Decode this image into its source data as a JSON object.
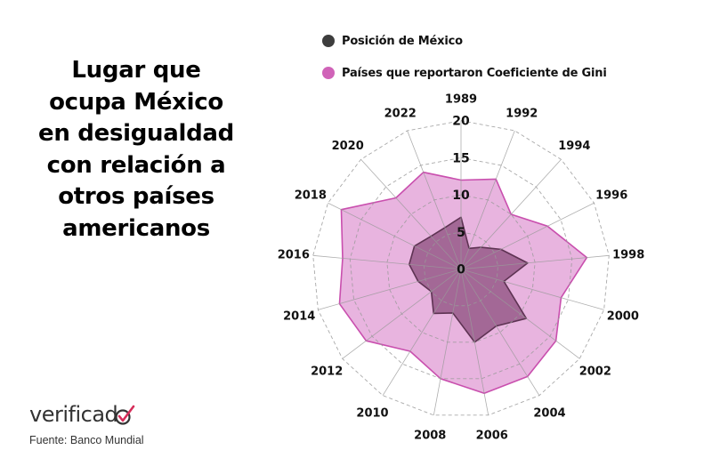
{
  "title": {
    "lines": [
      "Lugar que",
      "ocupa México",
      "en desigualdad",
      "con relación a",
      "otros países",
      "americanos"
    ]
  },
  "legend": {
    "items": [
      {
        "label": "Posición de México",
        "color": "#3d3d3d"
      },
      {
        "label": "Países que reportaron Coeficiente de Gini",
        "color": "#d063b8"
      }
    ]
  },
  "branding": {
    "logo_text": "verificad",
    "logo_icon": "check-o-icon",
    "source": "Fuente: Banco Mundial"
  },
  "style": {
    "series_mexico_fill": "#8c4f7d",
    "series_mexico_stroke": "#5e3353",
    "series_countries_fill": "#e7b0dd",
    "series_countries_stroke": "#c94fae",
    "grid_color": "#9a9a9a"
  },
  "chart_data": {
    "type": "radar",
    "title": "Lugar que ocupa México en desigualdad con relación a otros países americanos",
    "categories": [
      "1989",
      "1992",
      "1994",
      "1996",
      "1998",
      "2000",
      "2002",
      "2004",
      "2006",
      "2008",
      "2010",
      "2012",
      "2014",
      "2016",
      "2018",
      "2020",
      "2022"
    ],
    "series": [
      {
        "name": "Países que reportaron Coeficiente de Gini",
        "values": [
          12,
          13,
          10,
          13,
          17,
          14,
          16,
          17,
          17,
          15,
          13,
          16,
          17,
          16,
          18,
          13,
          14
        ]
      },
      {
        "name": "Posición de México",
        "values": [
          7,
          3,
          4,
          6,
          9,
          6,
          11,
          9,
          10,
          6,
          7,
          5,
          6,
          7,
          7,
          6,
          6
        ]
      }
    ],
    "radial_ticks": [
      0,
      5,
      10,
      15,
      20
    ],
    "rlim": [
      0,
      20
    ],
    "grid": "dashed polygons",
    "legend_position": "top"
  }
}
